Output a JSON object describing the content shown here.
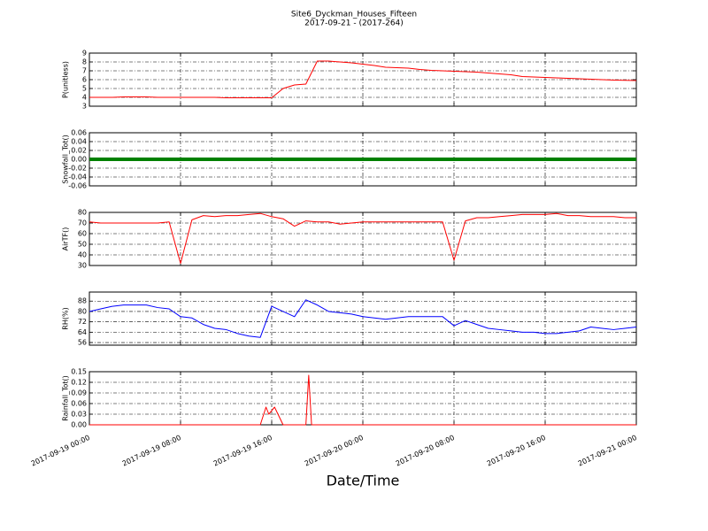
{
  "chart_data": [
    {
      "type": "line",
      "title": "Site6_Dyckman_Houses_Fifteen",
      "subtitle": "2017-09-21 - (2017-264)",
      "ylabel": "P(unitless)",
      "xlim": [
        "2017-09-19 00:00",
        "2017-09-21 00:00"
      ],
      "ylim": [
        3,
        9
      ],
      "yticks": [
        3,
        4,
        5,
        6,
        7,
        8,
        9
      ],
      "grid": true,
      "x": [
        "2017-09-19 00:00",
        "2017-09-19 01:00",
        "2017-09-19 02:00",
        "2017-09-19 03:00",
        "2017-09-19 04:00",
        "2017-09-19 05:00",
        "2017-09-19 06:00",
        "2017-09-19 07:00",
        "2017-09-19 08:00",
        "2017-09-19 09:00",
        "2017-09-19 10:00",
        "2017-09-19 11:00",
        "2017-09-19 12:00",
        "2017-09-19 13:00",
        "2017-09-19 14:00",
        "2017-09-19 15:00",
        "2017-09-19 16:00",
        "2017-09-19 17:00",
        "2017-09-19 18:00",
        "2017-09-19 19:00",
        "2017-09-19 20:00",
        "2017-09-19 21:00",
        "2017-09-19 22:00",
        "2017-09-19 23:00",
        "2017-09-20 00:00",
        "2017-09-20 01:00",
        "2017-09-20 02:00",
        "2017-09-20 03:00",
        "2017-09-20 04:00",
        "2017-09-20 05:00",
        "2017-09-20 06:00",
        "2017-09-20 07:00",
        "2017-09-20 08:00",
        "2017-09-20 09:00",
        "2017-09-20 10:00",
        "2017-09-20 11:00",
        "2017-09-20 12:00",
        "2017-09-20 13:00",
        "2017-09-20 14:00",
        "2017-09-20 15:00",
        "2017-09-20 16:00",
        "2017-09-20 17:00",
        "2017-09-20 18:00",
        "2017-09-20 19:00",
        "2017-09-20 20:00",
        "2017-09-20 21:00",
        "2017-09-20 22:00",
        "2017-09-20 23:00",
        "2017-09-21 00:00"
      ],
      "series": [
        {
          "color": "#ff0000",
          "values": [
            4.0,
            4.0,
            4.0,
            4.05,
            4.05,
            4.05,
            4.0,
            4.0,
            4.0,
            4.0,
            4.0,
            4.0,
            3.95,
            3.95,
            3.95,
            3.95,
            3.95,
            5.0,
            5.4,
            5.5,
            8.1,
            8.1,
            8.0,
            7.9,
            7.75,
            7.6,
            7.4,
            7.35,
            7.3,
            7.15,
            7.05,
            7.0,
            6.95,
            6.9,
            6.85,
            6.75,
            6.65,
            6.55,
            6.35,
            6.3,
            6.25,
            6.2,
            6.15,
            6.1,
            6.05,
            6.0,
            5.95,
            5.92,
            5.9
          ]
        }
      ]
    },
    {
      "type": "line",
      "ylabel": "Snowfall_Tot()",
      "xlim": [
        "2017-09-19 00:00",
        "2017-09-21 00:00"
      ],
      "ylim": [
        -0.06,
        0.06
      ],
      "yticks": [
        -0.06,
        -0.04,
        -0.02,
        {
          "value": 0,
          "label": "0.00"
        },
        0.02,
        0.04,
        0.06
      ],
      "grid": true,
      "x": [
        "2017-09-19 00:00",
        "2017-09-19 01:00",
        "2017-09-19 02:00",
        "2017-09-19 03:00",
        "2017-09-19 04:00",
        "2017-09-19 05:00",
        "2017-09-19 06:00",
        "2017-09-19 07:00",
        "2017-09-19 08:00",
        "2017-09-19 09:00",
        "2017-09-19 10:00",
        "2017-09-19 11:00",
        "2017-09-19 12:00",
        "2017-09-19 13:00",
        "2017-09-19 14:00",
        "2017-09-19 15:00",
        "2017-09-19 16:00",
        "2017-09-19 17:00",
        "2017-09-19 18:00",
        "2017-09-19 19:00",
        "2017-09-19 20:00",
        "2017-09-19 21:00",
        "2017-09-19 22:00",
        "2017-09-19 23:00",
        "2017-09-20 00:00",
        "2017-09-20 01:00",
        "2017-09-20 02:00",
        "2017-09-20 03:00",
        "2017-09-20 04:00",
        "2017-09-20 05:00",
        "2017-09-20 06:00",
        "2017-09-20 07:00",
        "2017-09-20 08:00",
        "2017-09-20 09:00",
        "2017-09-20 10:00",
        "2017-09-20 11:00",
        "2017-09-20 12:00",
        "2017-09-20 13:00",
        "2017-09-20 14:00",
        "2017-09-20 15:00",
        "2017-09-20 16:00",
        "2017-09-20 17:00",
        "2017-09-20 18:00",
        "2017-09-20 19:00",
        "2017-09-20 20:00",
        "2017-09-20 21:00",
        "2017-09-20 22:00",
        "2017-09-20 23:00",
        "2017-09-21 00:00"
      ],
      "series": [
        {
          "color": "#008000",
          "values": [
            0,
            0,
            0,
            0,
            0,
            0,
            0,
            0,
            0,
            0,
            0,
            0,
            0,
            0,
            0,
            0,
            0,
            0,
            0,
            0,
            0,
            0,
            0,
            0,
            0,
            0,
            0,
            0,
            0,
            0,
            0,
            0,
            0,
            0,
            0,
            0,
            0,
            0,
            0,
            0,
            0,
            0,
            0,
            0,
            0,
            0,
            0,
            0,
            0
          ]
        }
      ]
    },
    {
      "type": "line",
      "ylabel": "AirTF()",
      "xlim": [
        "2017-09-19 00:00",
        "2017-09-21 00:00"
      ],
      "ylim": [
        30,
        80
      ],
      "yticks": [
        30,
        40,
        50,
        60,
        70,
        80
      ],
      "grid": true,
      "x": [
        "2017-09-19 00:00",
        "2017-09-19 01:00",
        "2017-09-19 02:00",
        "2017-09-19 03:00",
        "2017-09-19 04:00",
        "2017-09-19 05:00",
        "2017-09-19 06:00",
        "2017-09-19 07:00",
        "2017-09-19 08:00",
        "2017-09-19 09:00",
        "2017-09-19 10:00",
        "2017-09-19 11:00",
        "2017-09-19 12:00",
        "2017-09-19 13:00",
        "2017-09-19 14:00",
        "2017-09-19 15:00",
        "2017-09-19 16:00",
        "2017-09-19 17:00",
        "2017-09-19 18:00",
        "2017-09-19 19:00",
        "2017-09-19 20:00",
        "2017-09-19 21:00",
        "2017-09-19 22:00",
        "2017-09-19 23:00",
        "2017-09-20 00:00",
        "2017-09-20 01:00",
        "2017-09-20 02:00",
        "2017-09-20 03:00",
        "2017-09-20 04:00",
        "2017-09-20 05:00",
        "2017-09-20 06:00",
        "2017-09-20 07:00",
        "2017-09-20 08:00",
        "2017-09-20 09:00",
        "2017-09-20 10:00",
        "2017-09-20 11:00",
        "2017-09-20 12:00",
        "2017-09-20 13:00",
        "2017-09-20 14:00",
        "2017-09-20 15:00",
        "2017-09-20 16:00",
        "2017-09-20 17:00",
        "2017-09-20 18:00",
        "2017-09-20 19:00",
        "2017-09-20 20:00",
        "2017-09-20 21:00",
        "2017-09-20 22:00",
        "2017-09-20 23:00",
        "2017-09-21 00:00"
      ],
      "series": [
        {
          "color": "#ff0000",
          "values": [
            71,
            70,
            70,
            70,
            70,
            70,
            70,
            71,
            32,
            73,
            77,
            76,
            77,
            77,
            78,
            79,
            76,
            74,
            67,
            72,
            71,
            71,
            69,
            70,
            71,
            71,
            71,
            71,
            71,
            71,
            71,
            71,
            35,
            72,
            75,
            75,
            76,
            77,
            78,
            78,
            78,
            79,
            77,
            77,
            76,
            76,
            76,
            75,
            75
          ]
        }
      ]
    },
    {
      "type": "line",
      "ylabel": "RH(%)",
      "xlim": [
        "2017-09-19 00:00",
        "2017-09-21 00:00"
      ],
      "ylim": [
        54,
        95
      ],
      "yticks": [
        56,
        64,
        72,
        80,
        88
      ],
      "grid": true,
      "x": [
        "2017-09-19 00:00",
        "2017-09-19 01:00",
        "2017-09-19 02:00",
        "2017-09-19 03:00",
        "2017-09-19 04:00",
        "2017-09-19 05:00",
        "2017-09-19 06:00",
        "2017-09-19 07:00",
        "2017-09-19 08:00",
        "2017-09-19 09:00",
        "2017-09-19 10:00",
        "2017-09-19 11:00",
        "2017-09-19 12:00",
        "2017-09-19 13:00",
        "2017-09-19 14:00",
        "2017-09-19 15:00",
        "2017-09-19 16:00",
        "2017-09-19 17:00",
        "2017-09-19 18:00",
        "2017-09-19 19:00",
        "2017-09-19 20:00",
        "2017-09-19 21:00",
        "2017-09-19 22:00",
        "2017-09-19 23:00",
        "2017-09-20 00:00",
        "2017-09-20 01:00",
        "2017-09-20 02:00",
        "2017-09-20 03:00",
        "2017-09-20 04:00",
        "2017-09-20 05:00",
        "2017-09-20 06:00",
        "2017-09-20 07:00",
        "2017-09-20 08:00",
        "2017-09-20 09:00",
        "2017-09-20 10:00",
        "2017-09-20 11:00",
        "2017-09-20 12:00",
        "2017-09-20 13:00",
        "2017-09-20 14:00",
        "2017-09-20 15:00",
        "2017-09-20 16:00",
        "2017-09-20 17:00",
        "2017-09-20 18:00",
        "2017-09-20 19:00",
        "2017-09-20 20:00",
        "2017-09-20 21:00",
        "2017-09-20 22:00",
        "2017-09-20 23:00",
        "2017-09-21 00:00"
      ],
      "series": [
        {
          "color": "#0000ff",
          "values": [
            80,
            82,
            84,
            85,
            85,
            85,
            83,
            82,
            76,
            75,
            70,
            67,
            66,
            63,
            61,
            60,
            84,
            80,
            76,
            89,
            85,
            80,
            79,
            78,
            76,
            75,
            74,
            75,
            76,
            76,
            76,
            76,
            69,
            73,
            70,
            67,
            66,
            65,
            64,
            64,
            63,
            63,
            64,
            65,
            68,
            67,
            66,
            67,
            68
          ]
        }
      ]
    },
    {
      "type": "line",
      "ylabel": "Rainfall_Tot()",
      "xlabel": "Date/Time",
      "xlim": [
        "2017-09-19 00:00",
        "2017-09-21 00:00"
      ],
      "ylim": [
        0,
        0.15
      ],
      "yticks": [
        {
          "value": 0,
          "label": "0.00"
        },
        0.03,
        0.06,
        0.09,
        0.12,
        0.15
      ],
      "grid": true,
      "xticks": [
        "2017-09-19 00:00",
        "2017-09-19 08:00",
        "2017-09-19 16:00",
        "2017-09-20 00:00",
        "2017-09-20 08:00",
        "2017-09-20 16:00",
        "2017-09-21 00:00"
      ],
      "x": [
        "2017-09-19 00:00",
        "2017-09-19 15:00",
        "2017-09-19 15:30",
        "2017-09-19 15:45",
        "2017-09-19 16:15",
        "2017-09-19 17:00",
        "2017-09-19 19:00",
        "2017-09-19 19:15",
        "2017-09-19 19:30",
        "2017-09-21 00:00"
      ],
      "series": [
        {
          "color": "#ff0000",
          "values": [
            0,
            0,
            0.05,
            0.03,
            0.05,
            0,
            0,
            0.14,
            0,
            0
          ]
        }
      ]
    }
  ]
}
